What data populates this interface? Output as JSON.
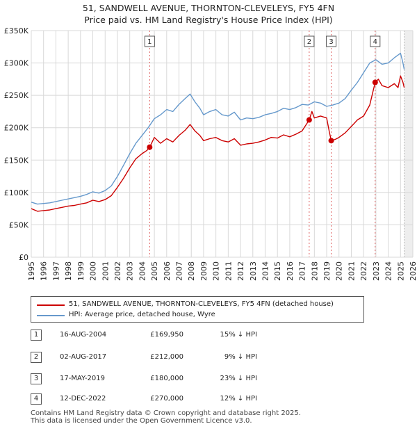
{
  "title_line1": "51, SANDWELL AVENUE, THORNTON-CLEVELEYS, FY5 4FN",
  "title_line2": "Price paid vs. HM Land Registry's House Price Index (HPI)",
  "chart_data": {
    "type": "line",
    "xlim": [
      1995,
      2026
    ],
    "ylim": [
      0,
      350000
    ],
    "y_ticks": [
      0,
      50000,
      100000,
      150000,
      200000,
      250000,
      300000,
      350000
    ],
    "y_tick_labels": [
      "£0",
      "£50K",
      "£100K",
      "£150K",
      "£200K",
      "£250K",
      "£300K",
      "£350K"
    ],
    "x_ticks": [
      1995,
      1996,
      1997,
      1998,
      1999,
      2000,
      2001,
      2002,
      2003,
      2004,
      2005,
      2006,
      2007,
      2008,
      2009,
      2010,
      2011,
      2012,
      2013,
      2014,
      2015,
      2016,
      2017,
      2018,
      2019,
      2020,
      2021,
      2022,
      2023,
      2024,
      2025,
      2026
    ],
    "x_tick_labels": [
      "1995",
      "1996",
      "1997",
      "1998",
      "1999",
      "2000",
      "2001",
      "2002",
      "2003",
      "2004",
      "2005",
      "2006",
      "2007",
      "2008",
      "2009",
      "2010",
      "2011",
      "2012",
      "2013",
      "2014",
      "2015",
      "2016",
      "2017",
      "2018",
      "2019",
      "2020",
      "2021",
      "2022",
      "2023",
      "2024",
      "2025",
      "2026"
    ],
    "grid": true,
    "series": [
      {
        "name": "51, SANDWELL AVENUE, THORNTON-CLEVELEYS, FY5 4FN (detached house)",
        "color": "#cc0000",
        "x": [
          1995.0,
          1995.5,
          1996.0,
          1996.5,
          1997.0,
          1997.5,
          1998.0,
          1998.5,
          1999.0,
          1999.5,
          2000.0,
          2000.5,
          2001.0,
          2001.5,
          2002.0,
          2002.5,
          2003.0,
          2003.5,
          2004.0,
          2004.4,
          2004.62,
          2005.0,
          2005.5,
          2006.0,
          2006.5,
          2007.0,
          2007.5,
          2007.9,
          2008.3,
          2008.7,
          2009.0,
          2009.5,
          2010.0,
          2010.5,
          2011.0,
          2011.5,
          2012.0,
          2012.5,
          2013.0,
          2013.5,
          2014.0,
          2014.5,
          2015.0,
          2015.5,
          2016.0,
          2016.5,
          2017.0,
          2017.58,
          2017.8,
          2018.0,
          2018.5,
          2019.0,
          2019.2,
          2019.37,
          2019.7,
          2020.0,
          2020.5,
          2021.0,
          2021.5,
          2022.0,
          2022.5,
          2022.94,
          2023.2,
          2023.5,
          2024.0,
          2024.5,
          2024.8,
          2025.0,
          2025.2,
          2025.3
        ],
        "values": [
          75000,
          71000,
          72000,
          73000,
          75000,
          77000,
          79000,
          80000,
          82000,
          84000,
          88000,
          86000,
          89000,
          95000,
          108000,
          122000,
          138000,
          152000,
          160000,
          165000,
          169950,
          185000,
          176000,
          183000,
          178000,
          188000,
          196000,
          205000,
          195000,
          188000,
          180000,
          183000,
          185000,
          180000,
          178000,
          183000,
          173000,
          175000,
          176000,
          178000,
          181000,
          185000,
          184000,
          189000,
          186000,
          190000,
          195000,
          212000,
          225000,
          215000,
          218000,
          215000,
          195000,
          180000,
          182000,
          185000,
          192000,
          202000,
          212000,
          218000,
          235000,
          270000,
          275000,
          265000,
          262000,
          268000,
          262000,
          280000,
          270000,
          262000
        ]
      },
      {
        "name": "HPI: Average price, detached house, Wyre",
        "color": "#6699cc",
        "x": [
          1995.0,
          1995.5,
          1996.0,
          1996.5,
          1997.0,
          1997.5,
          1998.0,
          1998.5,
          1999.0,
          1999.5,
          2000.0,
          2000.5,
          2001.0,
          2001.5,
          2002.0,
          2002.5,
          2003.0,
          2003.5,
          2004.0,
          2004.5,
          2005.0,
          2005.5,
          2006.0,
          2006.5,
          2007.0,
          2007.5,
          2007.9,
          2008.3,
          2008.7,
          2009.0,
          2009.5,
          2010.0,
          2010.5,
          2011.0,
          2011.5,
          2012.0,
          2012.5,
          2013.0,
          2013.5,
          2014.0,
          2014.5,
          2015.0,
          2015.5,
          2016.0,
          2016.5,
          2017.0,
          2017.5,
          2018.0,
          2018.5,
          2019.0,
          2019.5,
          2020.0,
          2020.5,
          2021.0,
          2021.5,
          2022.0,
          2022.5,
          2023.0,
          2023.5,
          2024.0,
          2024.5,
          2025.0,
          2025.2,
          2025.3
        ],
        "values": [
          85000,
          82000,
          83000,
          84000,
          86000,
          88000,
          90000,
          92000,
          94000,
          97000,
          101000,
          99000,
          103000,
          110000,
          125000,
          142000,
          160000,
          176000,
          188000,
          200000,
          214000,
          220000,
          228000,
          225000,
          236000,
          245000,
          252000,
          240000,
          230000,
          220000,
          225000,
          228000,
          220000,
          218000,
          224000,
          212000,
          215000,
          214000,
          216000,
          220000,
          222000,
          225000,
          230000,
          228000,
          231000,
          236000,
          235000,
          240000,
          238000,
          233000,
          235000,
          238000,
          245000,
          258000,
          270000,
          285000,
          300000,
          305000,
          298000,
          300000,
          308000,
          315000,
          300000,
          290000
        ]
      }
    ],
    "sale_markers": [
      {
        "label": "1",
        "x": 2004.62,
        "value": 169950
      },
      {
        "label": "2",
        "x": 2017.58,
        "value": 212000
      },
      {
        "label": "3",
        "x": 2019.37,
        "value": 180000
      },
      {
        "label": "4",
        "x": 2022.94,
        "value": 270000
      }
    ]
  },
  "legend": {
    "red_label": "51, SANDWELL AVENUE, THORNTON-CLEVELEYS, FY5 4FN (detached house)",
    "blue_label": "HPI: Average price, detached house, Wyre",
    "red_color": "#cc0000",
    "blue_color": "#6699cc"
  },
  "sales": [
    {
      "num": "1",
      "date": "16-AUG-2004",
      "price": "£169,950",
      "hpi": "15% ↓ HPI"
    },
    {
      "num": "2",
      "date": "02-AUG-2017",
      "price": "£212,000",
      "hpi": "9% ↓ HPI"
    },
    {
      "num": "3",
      "date": "17-MAY-2019",
      "price": "£180,000",
      "hpi": "23% ↓ HPI"
    },
    {
      "num": "4",
      "date": "12-DEC-2022",
      "price": "£270,000",
      "hpi": "12% ↓ HPI"
    }
  ],
  "footer_line1": "Contains HM Land Registry data © Crown copyright and database right 2025.",
  "footer_line2": "This data is licensed under the Open Government Licence v3.0."
}
